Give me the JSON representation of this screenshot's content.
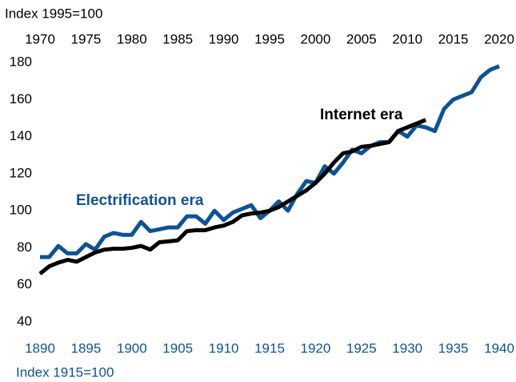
{
  "chart_data": {
    "type": "line",
    "y_axis_label": "Index 1995=100",
    "x_axis_label": "Index 1915=100",
    "xlim": [
      1890,
      1940
    ],
    "xticks": [
      1890,
      1895,
      1900,
      1905,
      1910,
      1915,
      1920,
      1925,
      1930,
      1935,
      1940
    ],
    "x2lim": [
      1970,
      2020
    ],
    "x2ticks": [
      1970,
      1975,
      1980,
      1985,
      1990,
      1995,
      2000,
      2005,
      2010,
      2015,
      2020
    ],
    "ylim": [
      40,
      180
    ],
    "yticks": [
      40,
      60,
      80,
      100,
      120,
      140,
      160,
      180
    ],
    "grid": false,
    "series": [
      {
        "name": "Electrification era",
        "color": "#0d5394",
        "axis": "x",
        "x": [
          1890,
          1891,
          1892,
          1893,
          1894,
          1895,
          1896,
          1897,
          1898,
          1899,
          1900,
          1901,
          1902,
          1903,
          1904,
          1905,
          1906,
          1907,
          1908,
          1909,
          1910,
          1911,
          1912,
          1913,
          1914,
          1915,
          1916,
          1917,
          1918,
          1919,
          1920,
          1921,
          1922,
          1923,
          1924,
          1925,
          1926,
          1927,
          1928,
          1929,
          1930,
          1931,
          1932,
          1933,
          1934,
          1935,
          1936,
          1937,
          1938,
          1939,
          1940
        ],
        "values": [
          75,
          75,
          81,
          77,
          77,
          82,
          79,
          86,
          88,
          87,
          87,
          94,
          89,
          90,
          91,
          91,
          97,
          97,
          93,
          100,
          95,
          99,
          101,
          103,
          96,
          100,
          105,
          100,
          109,
          116,
          115,
          124,
          120,
          126,
          133,
          131,
          135,
          137,
          137,
          143,
          140,
          146,
          145,
          143,
          155,
          160,
          162,
          164,
          172,
          176,
          178
        ]
      },
      {
        "name": "Internet era",
        "color": "#000000",
        "axis": "x2",
        "x": [
          1970,
          1971,
          1972,
          1973,
          1974,
          1975,
          1976,
          1977,
          1978,
          1979,
          1980,
          1981,
          1982,
          1983,
          1984,
          1985,
          1986,
          1987,
          1988,
          1989,
          1990,
          1991,
          1992,
          1993,
          1994,
          1995,
          1996,
          1997,
          1998,
          1999,
          2000,
          2001,
          2002,
          2003,
          2004,
          2005,
          2006,
          2007,
          2008,
          2009,
          2010,
          2011,
          2012
        ],
        "values": [
          66,
          70,
          72,
          73.5,
          72.5,
          75,
          77.5,
          79,
          79.5,
          79.5,
          80,
          81,
          79,
          83,
          83.5,
          84,
          89,
          89.5,
          89.5,
          91,
          92,
          94,
          97.5,
          98.5,
          99,
          100,
          102,
          105,
          108,
          111,
          115,
          120,
          126,
          131,
          132,
          134.5,
          135,
          136,
          137,
          143,
          145,
          147,
          149
        ]
      }
    ]
  }
}
